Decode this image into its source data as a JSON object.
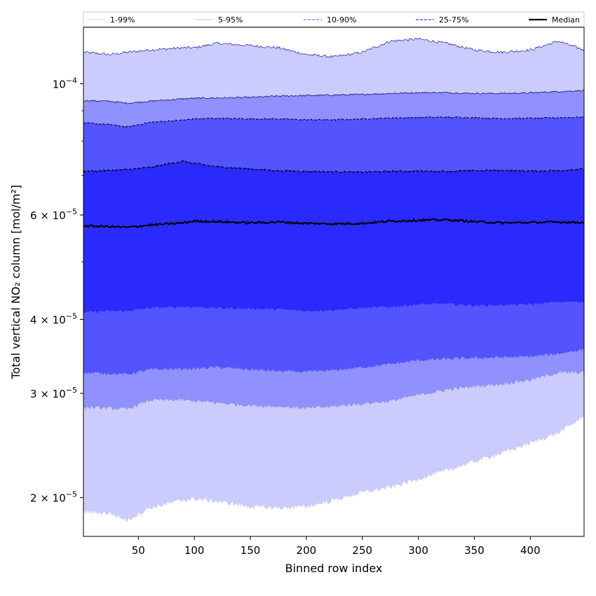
{
  "chart_data": {
    "type": "area",
    "title": "",
    "xlabel": "Binned row index",
    "ylabel": "Total vertical NO₂ column [mol/m²]",
    "xlim": [
      1,
      448
    ],
    "ylim": [
      1.72e-05,
      0.0001245
    ],
    "yscale": "log",
    "x_ticks": [
      50,
      100,
      150,
      200,
      250,
      300,
      350,
      400
    ],
    "x_tick_labels": [
      "50",
      "100",
      "150",
      "200",
      "250",
      "300",
      "350",
      "400"
    ],
    "y_ticks": [
      {
        "value": 0.0001,
        "mantissa": "10",
        "exponent": "−4"
      },
      {
        "value": 6e-05,
        "mantissa": "6 × 10",
        "exponent": "−5"
      },
      {
        "value": 4e-05,
        "mantissa": "4 × 10",
        "exponent": "−5"
      },
      {
        "value": 3e-05,
        "mantissa": "3 × 10",
        "exponent": "−5"
      },
      {
        "value": 2e-05,
        "mantissa": "2 × 10",
        "exponent": "−5"
      }
    ],
    "y_minor_ticks": [
      5e-05,
      7e-05,
      8e-05,
      9e-05
    ],
    "x_knots": [
      1,
      25,
      40,
      60,
      90,
      100,
      120,
      150,
      175,
      200,
      225,
      250,
      275,
      300,
      325,
      350,
      375,
      400,
      425,
      448
    ],
    "bands": [
      {
        "name": "1-99%",
        "color": "#cccbfd",
        "line_color": "#000099",
        "line_style": "solid",
        "lower": [
          1.89e-05,
          1.88e-05,
          1.83e-05,
          1.92e-05,
          1.98e-05,
          1.99e-05,
          1.97e-05,
          1.93e-05,
          1.92e-05,
          1.93e-05,
          1.98e-05,
          2.04e-05,
          2.08e-05,
          2.15e-05,
          2.22e-05,
          2.3e-05,
          2.38e-05,
          2.47e-05,
          2.57e-05,
          2.74e-05
        ],
        "upper": [
          0.000113,
          0.000112,
          0.000113,
          0.000114,
          0.000115,
          0.000115,
          0.000117,
          0.000116,
          0.000115,
          0.000112,
          0.000111,
          0.000113,
          0.000118,
          0.000119,
          0.000117,
          0.000114,
          0.000113,
          0.000114,
          0.000118,
          0.000114
        ]
      },
      {
        "name": "5-95%",
        "color": "#9090fe",
        "line_color": "#000066",
        "line_style": "solid",
        "lower": [
          2.84e-05,
          2.83e-05,
          2.82e-05,
          2.92e-05,
          2.92e-05,
          2.91e-05,
          2.89e-05,
          2.86e-05,
          2.85e-05,
          2.83e-05,
          2.85e-05,
          2.88e-05,
          2.91e-05,
          2.98e-05,
          3.04e-05,
          3.08e-05,
          3.11e-05,
          3.16e-05,
          3.25e-05,
          3.25e-05
        ]
      },
      {
        "name": "10-90%",
        "color": "#5454fe",
        "line_color": "#000044",
        "line_style": "dashed",
        "lower": [
          3.25e-05,
          3.24e-05,
          3.23e-05,
          3.29e-05,
          3.3e-05,
          3.3e-05,
          3.32e-05,
          3.29e-05,
          3.27e-05,
          3.26e-05,
          3.28e-05,
          3.32e-05,
          3.36e-05,
          3.41e-05,
          3.43e-05,
          3.44e-05,
          3.45e-05,
          3.46e-05,
          3.5e-05,
          3.56e-05
        ],
        "upper": [
          9.37e-05,
          9.34e-05,
          9.27e-05,
          9.34e-05,
          9.43e-05,
          9.45e-05,
          9.46e-05,
          9.48e-05,
          9.53e-05,
          9.55e-05,
          9.57e-05,
          9.59e-05,
          9.63e-05,
          9.66e-05,
          9.66e-05,
          9.63e-05,
          9.63e-05,
          9.65e-05,
          9.7e-05,
          9.74e-05
        ]
      },
      {
        "name": "25-75%",
        "color": "#2a2afe",
        "line_color": "#000033",
        "line_style": "dashed",
        "lower": [
          4.11e-05,
          4.13e-05,
          4.13e-05,
          4.18e-05,
          4.2e-05,
          4.2e-05,
          4.18e-05,
          4.17e-05,
          4.16e-05,
          4.13e-05,
          4.15e-05,
          4.18e-05,
          4.2e-05,
          4.24e-05,
          4.25e-05,
          4.22e-05,
          4.23e-05,
          4.24e-05,
          4.28e-05,
          4.28e-05
        ],
        "upper": [
          8.58e-05,
          8.53e-05,
          8.45e-05,
          8.6e-05,
          8.68e-05,
          8.72e-05,
          8.74e-05,
          8.72e-05,
          8.72e-05,
          8.69e-05,
          8.69e-05,
          8.72e-05,
          8.75e-05,
          8.77e-05,
          8.78e-05,
          8.76e-05,
          8.73e-05,
          8.74e-05,
          8.76e-05,
          8.78e-05
        ]
      },
      {
        "name": "",
        "color": "#2a2afe",
        "line_color": "#000022",
        "line_style": "dashed",
        "lower": [
          4.11e-05,
          4.13e-05,
          4.13e-05,
          4.18e-05,
          4.2e-05,
          4.2e-05,
          4.18e-05,
          4.17e-05,
          4.16e-05,
          4.13e-05,
          4.15e-05,
          4.18e-05,
          4.2e-05,
          4.24e-05,
          4.25e-05,
          4.22e-05,
          4.23e-05,
          4.24e-05,
          4.28e-05,
          4.28e-05
        ],
        "upper": [
          7.11e-05,
          7.14e-05,
          7.16e-05,
          7.22e-05,
          7.4e-05,
          7.33e-05,
          7.24e-05,
          7.18e-05,
          7.13e-05,
          7.11e-05,
          7.1e-05,
          7.09e-05,
          7.11e-05,
          7.12e-05,
          7.11e-05,
          7.13e-05,
          7.14e-05,
          7.12e-05,
          7.13e-05,
          7.18e-05
        ]
      }
    ],
    "median": {
      "name": "Median",
      "color": "#000000",
      "values": [
        5.75e-05,
        5.74e-05,
        5.72e-05,
        5.77e-05,
        5.82e-05,
        5.86e-05,
        5.85e-05,
        5.82e-05,
        5.84e-05,
        5.81e-05,
        5.8e-05,
        5.81e-05,
        5.86e-05,
        5.88e-05,
        5.89e-05,
        5.85e-05,
        5.82e-05,
        5.83e-05,
        5.84e-05,
        5.83e-05
      ]
    },
    "legend": {
      "position": "top",
      "entries": [
        {
          "label": "1-99%",
          "color": "#b0b0d8",
          "line_style": "solid",
          "width": 0.6
        },
        {
          "label": "5-95%",
          "color": "#8888c8",
          "line_style": "solid",
          "width": 0.6
        },
        {
          "label": "10-90%",
          "color": "#8080f0",
          "line_style": "dashed",
          "width": 1.2
        },
        {
          "label": "25-75%",
          "color": "#5c5cd0",
          "line_style": "dashed",
          "width": 1.4
        },
        {
          "label": "Median",
          "color": "#000000",
          "line_style": "solid",
          "width": 2.2
        }
      ]
    },
    "grid": false
  }
}
